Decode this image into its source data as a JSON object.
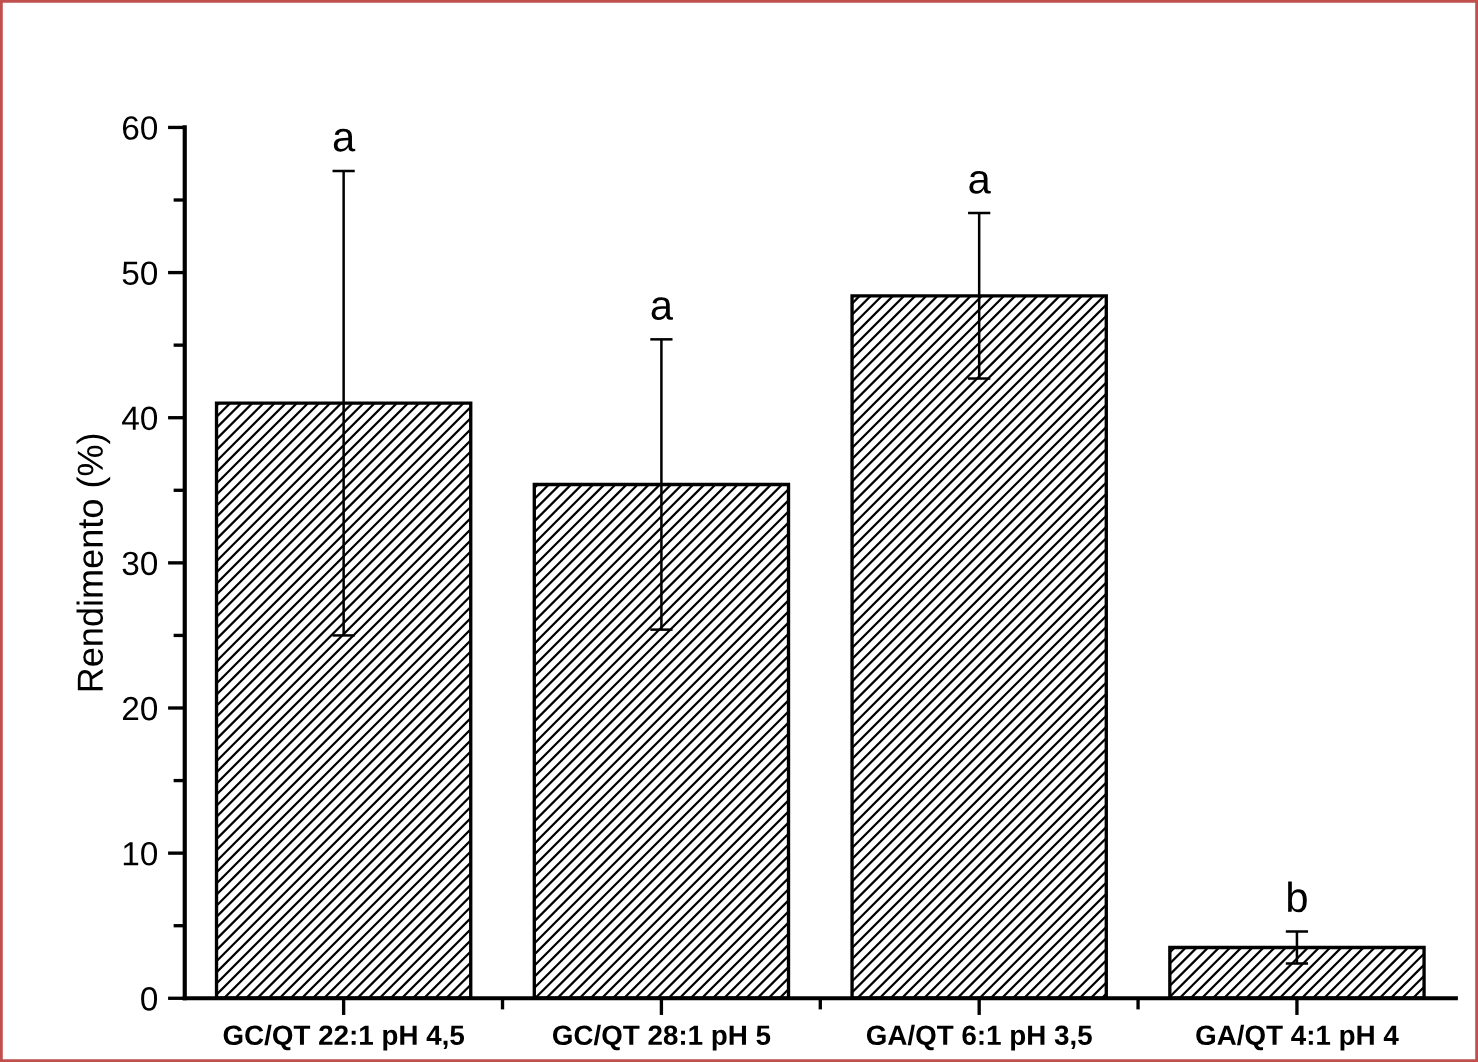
{
  "chart_data": {
    "type": "bar",
    "ylabel": "Rendimento (%)",
    "categories": [
      "GC/QT 22:1 pH 4,5",
      "GC/QT 28:1 pH 5",
      "GA/QT 6:1 pH 3,5",
      "GA/QT 4:1 pH 4"
    ],
    "values": [
      41,
      35.4,
      48.4,
      3.5
    ],
    "errors": [
      16,
      10,
      5.7,
      1.1
    ],
    "ylim": [
      0,
      60
    ],
    "yticks": [
      0,
      10,
      20,
      30,
      40,
      50,
      60
    ],
    "grid": false,
    "legend": false,
    "annotations": [
      {
        "text": "a",
        "x": "GC/QT 22:1 pH 4,5",
        "y": 57
      },
      {
        "text": "a",
        "x": "GC/QT 28:1 pH 5",
        "y": 45.4
      },
      {
        "text": "a",
        "x": "GA/QT 6:1 pH 3,5",
        "y": 54.1
      },
      {
        "text": "b",
        "x": "GA/QT 4:1 pH 4",
        "y": 4.6
      }
    ]
  }
}
